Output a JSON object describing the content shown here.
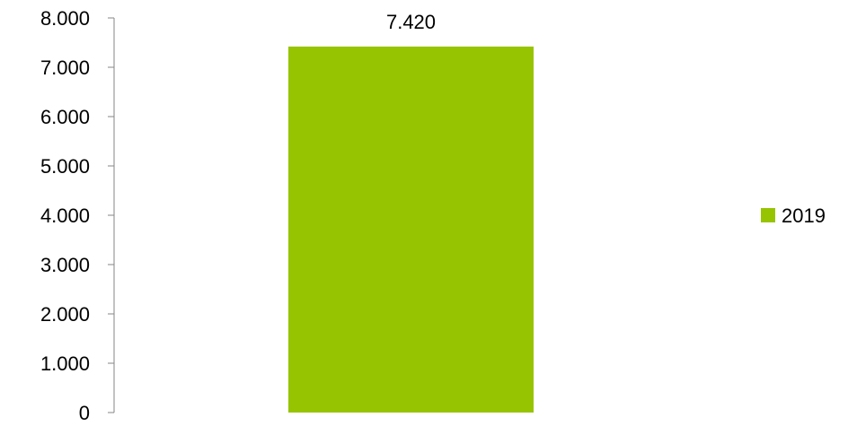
{
  "chart_data": {
    "type": "bar",
    "categories": [
      ""
    ],
    "series": [
      {
        "name": "2019",
        "values": [
          7420
        ],
        "color": "#97c400"
      }
    ],
    "data_labels": [
      "7.420"
    ],
    "y_ticks": [
      {
        "value": 0,
        "label": "0"
      },
      {
        "value": 1000,
        "label": "1.000"
      },
      {
        "value": 2000,
        "label": "2.000"
      },
      {
        "value": 3000,
        "label": "3.000"
      },
      {
        "value": 4000,
        "label": "4.000"
      },
      {
        "value": 5000,
        "label": "5.000"
      },
      {
        "value": 6000,
        "label": "6.000"
      },
      {
        "value": 7000,
        "label": "7.000"
      },
      {
        "value": 8000,
        "label": "8.000"
      }
    ],
    "ylim": [
      0,
      8000
    ],
    "grid": false,
    "legend_position": "right",
    "title": "",
    "xlabel": "",
    "ylabel": ""
  }
}
